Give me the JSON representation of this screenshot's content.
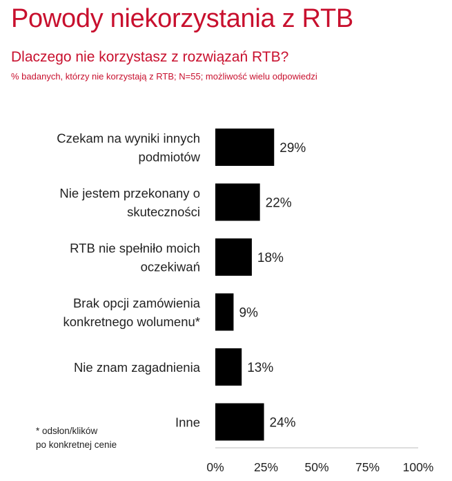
{
  "header": {
    "title": "Powody niekorzystania z RTB",
    "question": "Dlaczego nie korzystasz z rozwiązań RTB?",
    "note": "% badanych, którzy nie korzystają z RTB; N=55; możliwość wielu odpowiedzi"
  },
  "footnote": {
    "line1": "* odsłon/klików",
    "line2": "po konkretnej cenie"
  },
  "colors": {
    "accent": "#c8102e",
    "bar": "#000000",
    "text": "#222222",
    "axis": "#bbbbbb"
  },
  "chart_data": {
    "type": "bar",
    "orientation": "horizontal",
    "title": "Dlaczego nie korzystasz z rozwiązań RTB?",
    "categories": [
      [
        "Czekam na wyniki innych",
        "podmiotów"
      ],
      [
        "Nie jestem przekonany o",
        "skuteczności"
      ],
      [
        "RTB nie spełniło moich",
        "oczekiwań"
      ],
      [
        "Brak opcji zamówienia",
        "konkretnego wolumenu*"
      ],
      [
        "Nie znam zagadnienia"
      ],
      [
        "Inne"
      ]
    ],
    "values": [
      29,
      22,
      18,
      9,
      13,
      24
    ],
    "value_labels": [
      "29%",
      "22%",
      "18%",
      "9%",
      "13%",
      "24%"
    ],
    "xlim": [
      0,
      100
    ],
    "xticks": [
      0,
      25,
      50,
      75,
      100
    ],
    "xtick_labels": [
      "0%",
      "25%",
      "50%",
      "75%",
      "100%"
    ],
    "grid": false,
    "legend": "none"
  }
}
